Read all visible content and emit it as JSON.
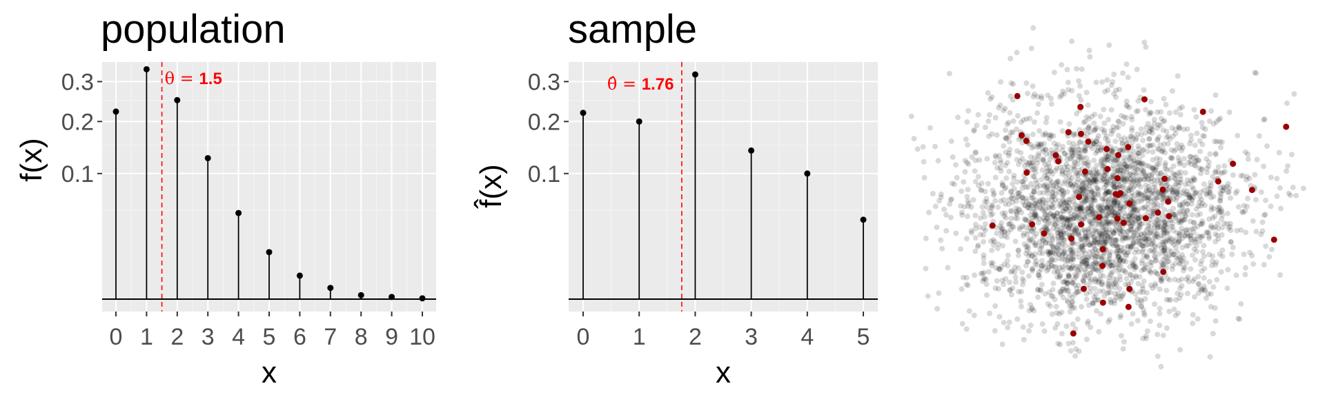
{
  "chart_data": [
    {
      "type": "stem",
      "title": "population",
      "xlabel": "x",
      "ylabel": "f(x)",
      "y_scale": "sqrt",
      "ylim": [
        0,
        0.34
      ],
      "x": [
        0,
        1,
        2,
        3,
        4,
        5,
        6,
        7,
        8,
        9,
        10
      ],
      "values": [
        0.223,
        0.335,
        0.251,
        0.126,
        0.047,
        0.014,
        0.0035,
        0.0008,
        0.0001,
        3e-05,
        4e-06
      ],
      "x_ticks": [
        "0",
        "1",
        "2",
        "3",
        "4",
        "5",
        "6",
        "7",
        "8",
        "9",
        "10"
      ],
      "y_ticks": [
        {
          "value": 0.1,
          "label": "0.1"
        },
        {
          "value": 0.2,
          "label": "0.2"
        },
        {
          "value": 0.3,
          "label": "0.3"
        }
      ],
      "reference_line": {
        "value": 1.5,
        "label": "θ = 1.5",
        "value_text": "1.5",
        "color": "#ff0000",
        "style": "dashed"
      },
      "grid": true
    },
    {
      "type": "stem",
      "title": "sample",
      "xlabel": "x",
      "ylabel": "f̂(x)",
      "y_scale": "sqrt",
      "ylim": [
        0,
        0.34
      ],
      "x": [
        0,
        1,
        2,
        3,
        4,
        5
      ],
      "values": [
        0.22,
        0.2,
        0.32,
        0.14,
        0.1,
        0.04
      ],
      "x_ticks": [
        "0",
        "1",
        "2",
        "3",
        "4",
        "5"
      ],
      "y_ticks": [
        {
          "value": 0.1,
          "label": "0.1"
        },
        {
          "value": 0.2,
          "label": "0.2"
        },
        {
          "value": 0.3,
          "label": "0.3"
        }
      ],
      "reference_line": {
        "value": 1.76,
        "label": "θ̂ = 1.76",
        "value_text": "1.76",
        "color": "#ff0000",
        "style": "dashed"
      },
      "grid": true
    },
    {
      "type": "scatter",
      "title": "",
      "description_series": [
        {
          "role": "population",
          "n": 3000,
          "color": "#000000",
          "opacity": 0.15
        },
        {
          "role": "sample",
          "n": 50,
          "color": "#9b0000",
          "opacity": 1
        }
      ],
      "grid": false,
      "axes": false
    }
  ]
}
